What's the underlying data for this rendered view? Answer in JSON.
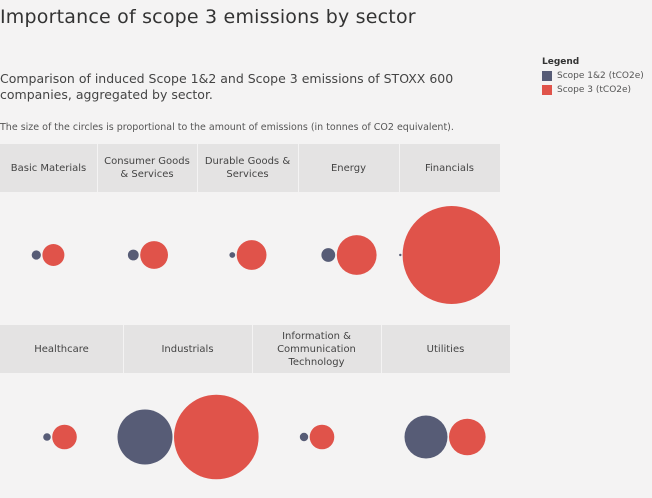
{
  "title": "Importance of scope 3 emissions by sector",
  "subtitle": "Comparison of induced Scope 1&2 and Scope 3 emissions of STOXX 600 companies, aggregated by sector.",
  "note": "The size of the circles is proportional to the amount of emissions (in tonnes of CO2 equivalent).",
  "legend": {
    "title": "Legend",
    "items": [
      {
        "label": "Scope 1&2 (tCO2e)",
        "color": "#575c76"
      },
      {
        "label": "Scope 3 (tCO2e)",
        "color": "#e0534a"
      }
    ]
  },
  "chart_data": {
    "type": "scatter",
    "encoding": "circle area proportional to emissions (relative units, largest Scope 3 = 100)",
    "series": [
      {
        "name": "Scope 1&2 (tCO2e)",
        "color": "#575c76"
      },
      {
        "name": "Scope 3 (tCO2e)",
        "color": "#e0534a"
      }
    ],
    "rows": [
      {
        "sectors": [
          {
            "label": "Basic Materials",
            "scope12": 0.9,
            "scope3": 5.0
          },
          {
            "label": "Consumer Goods & Services",
            "scope12": 1.2,
            "scope3": 8.1
          },
          {
            "label": "Durable Goods & Services",
            "scope12": 0.35,
            "scope3": 9.3
          },
          {
            "label": "Energy",
            "scope12": 2.0,
            "scope3": 16.5
          },
          {
            "label": "Financials",
            "scope12": 0.03,
            "scope3": 100
          }
        ]
      },
      {
        "sectors": [
          {
            "label": "Healthcare",
            "scope12": 0.6,
            "scope3": 6.3
          },
          {
            "label": "Industrials",
            "scope12": 31.6,
            "scope3": 74.4
          },
          {
            "label": "Information & Communication Technology",
            "scope12": 0.75,
            "scope3": 6.3
          },
          {
            "label": "Utilities",
            "scope12": 19.3,
            "scope3": 13.9
          }
        ]
      }
    ]
  }
}
